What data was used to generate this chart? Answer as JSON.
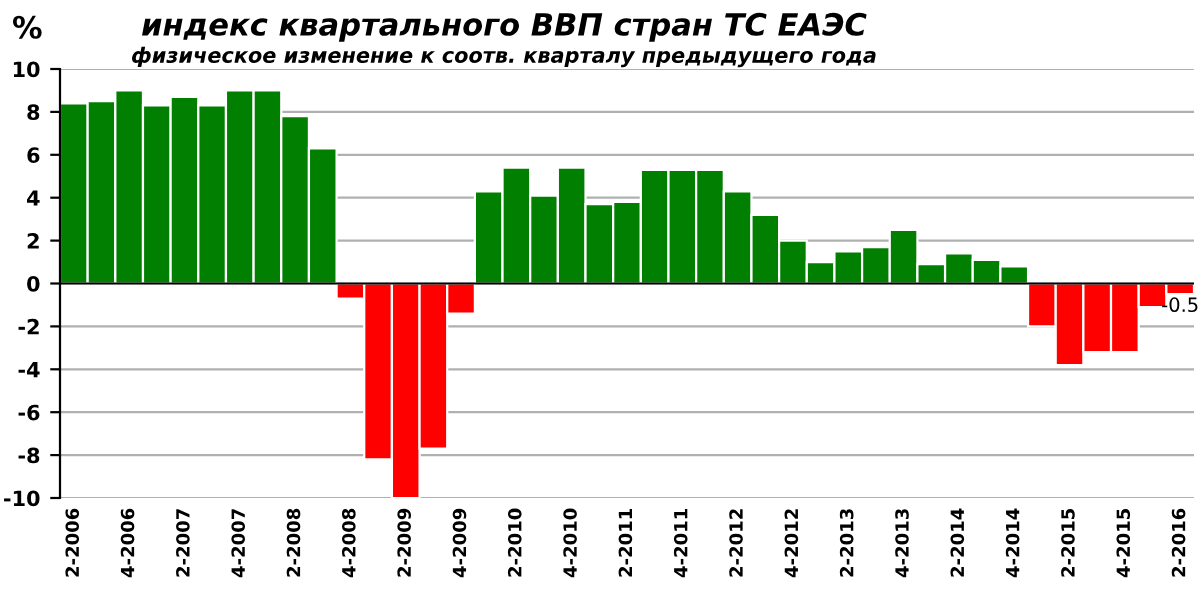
{
  "chart_data": {
    "type": "bar",
    "title": "индекс квартального ВВП стран ТС ЕАЭС",
    "subtitle": "физическое изменение к соотв. кварталу предыдущего года",
    "ylabel": "%",
    "categories": [
      "2-2006",
      null,
      "4-2006",
      null,
      "2-2007",
      null,
      "4-2007",
      null,
      "2-2008",
      null,
      "4-2008",
      null,
      "2-2009",
      null,
      "4-2009",
      null,
      "2-2010",
      null,
      "4-2010",
      null,
      "2-2011",
      null,
      "4-2011",
      null,
      "2-2012",
      null,
      "4-2012",
      null,
      "2-2013",
      null,
      "4-2013",
      null,
      "2-2014",
      null,
      "4-2014",
      null,
      "2-2015",
      null,
      "4-2015",
      null,
      "2-2016"
    ],
    "values": [
      8.4,
      8.5,
      9.0,
      8.3,
      8.7,
      8.3,
      9.0,
      9.0,
      7.8,
      6.3,
      -0.7,
      -8.2,
      -10.0,
      -7.7,
      -1.4,
      4.3,
      5.4,
      4.1,
      5.4,
      3.7,
      3.8,
      5.3,
      5.3,
      5.3,
      4.3,
      3.2,
      2.0,
      1.0,
      1.5,
      1.7,
      2.5,
      0.9,
      1.4,
      1.1,
      0.8,
      -2.0,
      -3.8,
      -3.2,
      -3.2,
      -1.1,
      -0.5
    ],
    "colors": [
      "#007f00",
      "#007f00",
      "#007f00",
      "#007f00",
      "#007f00",
      "#007f00",
      "#007f00",
      "#007f00",
      "#007f00",
      "#007f00",
      "#ff0000",
      "#ff0000",
      "#ff0000",
      "#ff0000",
      "#ff0000",
      "#007f00",
      "#007f00",
      "#007f00",
      "#007f00",
      "#007f00",
      "#007f00",
      "#007f00",
      "#007f00",
      "#007f00",
      "#007f00",
      "#007f00",
      "#007f00",
      "#007f00",
      "#007f00",
      "#007f00",
      "#007f00",
      "#007f00",
      "#007f00",
      "#007f00",
      "#007f00",
      "#ff0000",
      "#ff0000",
      "#ff0000",
      "#ff0000",
      "#ff0000",
      "#ff0000"
    ],
    "value_labels": [
      null,
      null,
      null,
      null,
      null,
      null,
      null,
      null,
      null,
      null,
      null,
      null,
      null,
      null,
      null,
      null,
      null,
      null,
      null,
      null,
      null,
      null,
      null,
      null,
      null,
      null,
      null,
      null,
      null,
      null,
      null,
      null,
      null,
      null,
      null,
      null,
      null,
      null,
      null,
      null,
      "-0.5"
    ],
    "ylim": [
      -10,
      10
    ],
    "yticks": [
      -10,
      -8,
      -6,
      -4,
      -2,
      0,
      2,
      4,
      6,
      8,
      10
    ],
    "grid": "y",
    "legend": false
  }
}
